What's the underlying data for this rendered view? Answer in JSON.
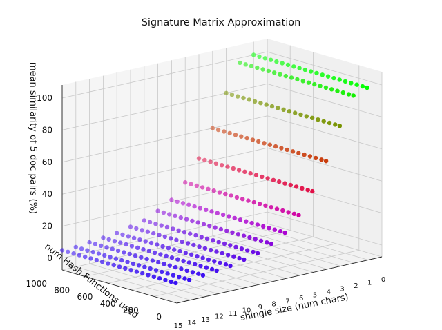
{
  "chart_data": {
    "type": "scatter3d",
    "title": "Signature Matrix Approximation",
    "xlabel": "shingle size (num chars)",
    "ylabel": "num Hash Functions used",
    "zlabel": "mean similarity of 5 doc pairs (%)",
    "x_ticks": [
      "0",
      "1",
      "2",
      "3",
      "4",
      "5",
      "6",
      "7",
      "8",
      "9",
      "10",
      "11",
      "12",
      "13",
      "14",
      "15"
    ],
    "y_ticks": [
      "0",
      "200",
      "400",
      "600",
      "800",
      "1000"
    ],
    "z_ticks": [
      "0",
      "20",
      "40",
      "60",
      "80",
      "100"
    ],
    "xlim": [
      0,
      15
    ],
    "ylim": [
      0,
      1000
    ],
    "zlim": [
      0,
      100
    ],
    "grid": true,
    "color_encoding": "green at 100% similarity, through yellow-green, red, magenta, to blue near 0%",
    "hash_function_counts": [
      10,
      50,
      100,
      150,
      200,
      250,
      300,
      350,
      400,
      450,
      500,
      550,
      600,
      650,
      700,
      750,
      800,
      850,
      900,
      950,
      1000
    ],
    "similarity_by_shingle_size": [
      {
        "shingle_size": 1,
        "mean_similarity": 100
      },
      {
        "shingle_size": 2,
        "mean_similarity": 97
      },
      {
        "shingle_size": 3,
        "mean_similarity": 80
      },
      {
        "shingle_size": 4,
        "mean_similarity": 60
      },
      {
        "shingle_size": 5,
        "mean_similarity": 43
      },
      {
        "shingle_size": 6,
        "mean_similarity": 30
      },
      {
        "shingle_size": 7,
        "mean_similarity": 21
      },
      {
        "shingle_size": 8,
        "mean_similarity": 16
      },
      {
        "shingle_size": 9,
        "mean_similarity": 12
      },
      {
        "shingle_size": 10,
        "mean_similarity": 10
      },
      {
        "shingle_size": 11,
        "mean_similarity": 8
      },
      {
        "shingle_size": 12,
        "mean_similarity": 7
      },
      {
        "shingle_size": 13,
        "mean_similarity": 6
      },
      {
        "shingle_size": 14,
        "mean_similarity": 5
      },
      {
        "shingle_size": 15,
        "mean_similarity": 5
      }
    ]
  }
}
